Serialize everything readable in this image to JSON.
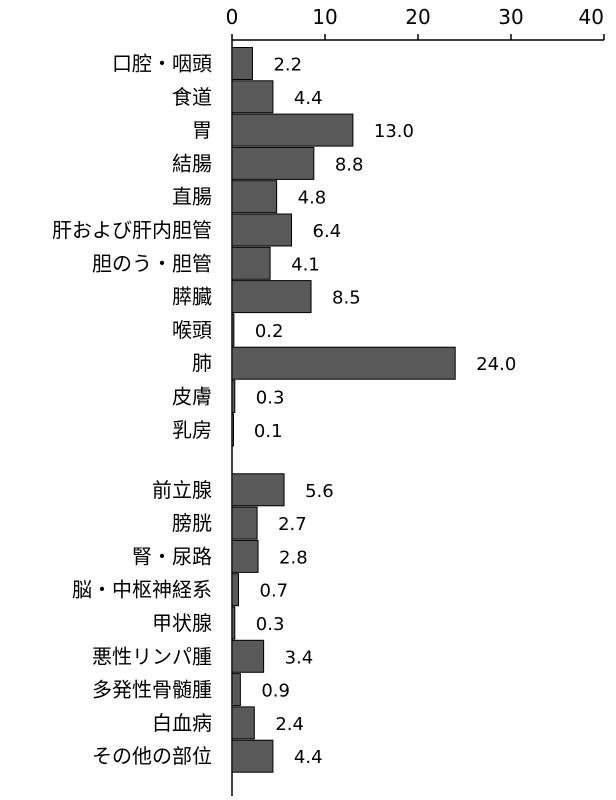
{
  "chart_data": {
    "type": "bar",
    "orientation": "horizontal",
    "xlim": [
      0,
      40
    ],
    "xticks": [
      "0",
      "10",
      "20",
      "30",
      "40"
    ],
    "grid": false,
    "bar_color": "#595959",
    "categories": [
      "口腔・咽頭",
      "食道",
      "胃",
      "結腸",
      "直腸",
      "肝および肝内胆管",
      "胆のう・胆管",
      "膵臓",
      "喉頭",
      "肺",
      "皮膚",
      "乳房",
      "前立腺",
      "膀胱",
      "腎・尿路",
      "脳・中枢神経系",
      "甲状腺",
      "悪性リンパ腫",
      "多発性骨髄腫",
      "白血病",
      "その他の部位"
    ],
    "values": [
      2.2,
      4.4,
      13.0,
      8.8,
      4.8,
      6.4,
      4.1,
      8.5,
      0.2,
      24.0,
      0.3,
      0.1,
      5.6,
      2.7,
      2.8,
      0.7,
      0.3,
      3.4,
      0.9,
      2.4,
      4.4
    ],
    "value_labels": [
      "2.2",
      "4.4",
      "13.0",
      "8.8",
      "4.8",
      "6.4",
      "4.1",
      "8.5",
      "0.2",
      "24.0",
      "0.3",
      "0.1",
      "5.6",
      "2.7",
      "2.8",
      "0.7",
      "0.3",
      "3.4",
      "0.9",
      "2.4",
      "4.4"
    ]
  }
}
